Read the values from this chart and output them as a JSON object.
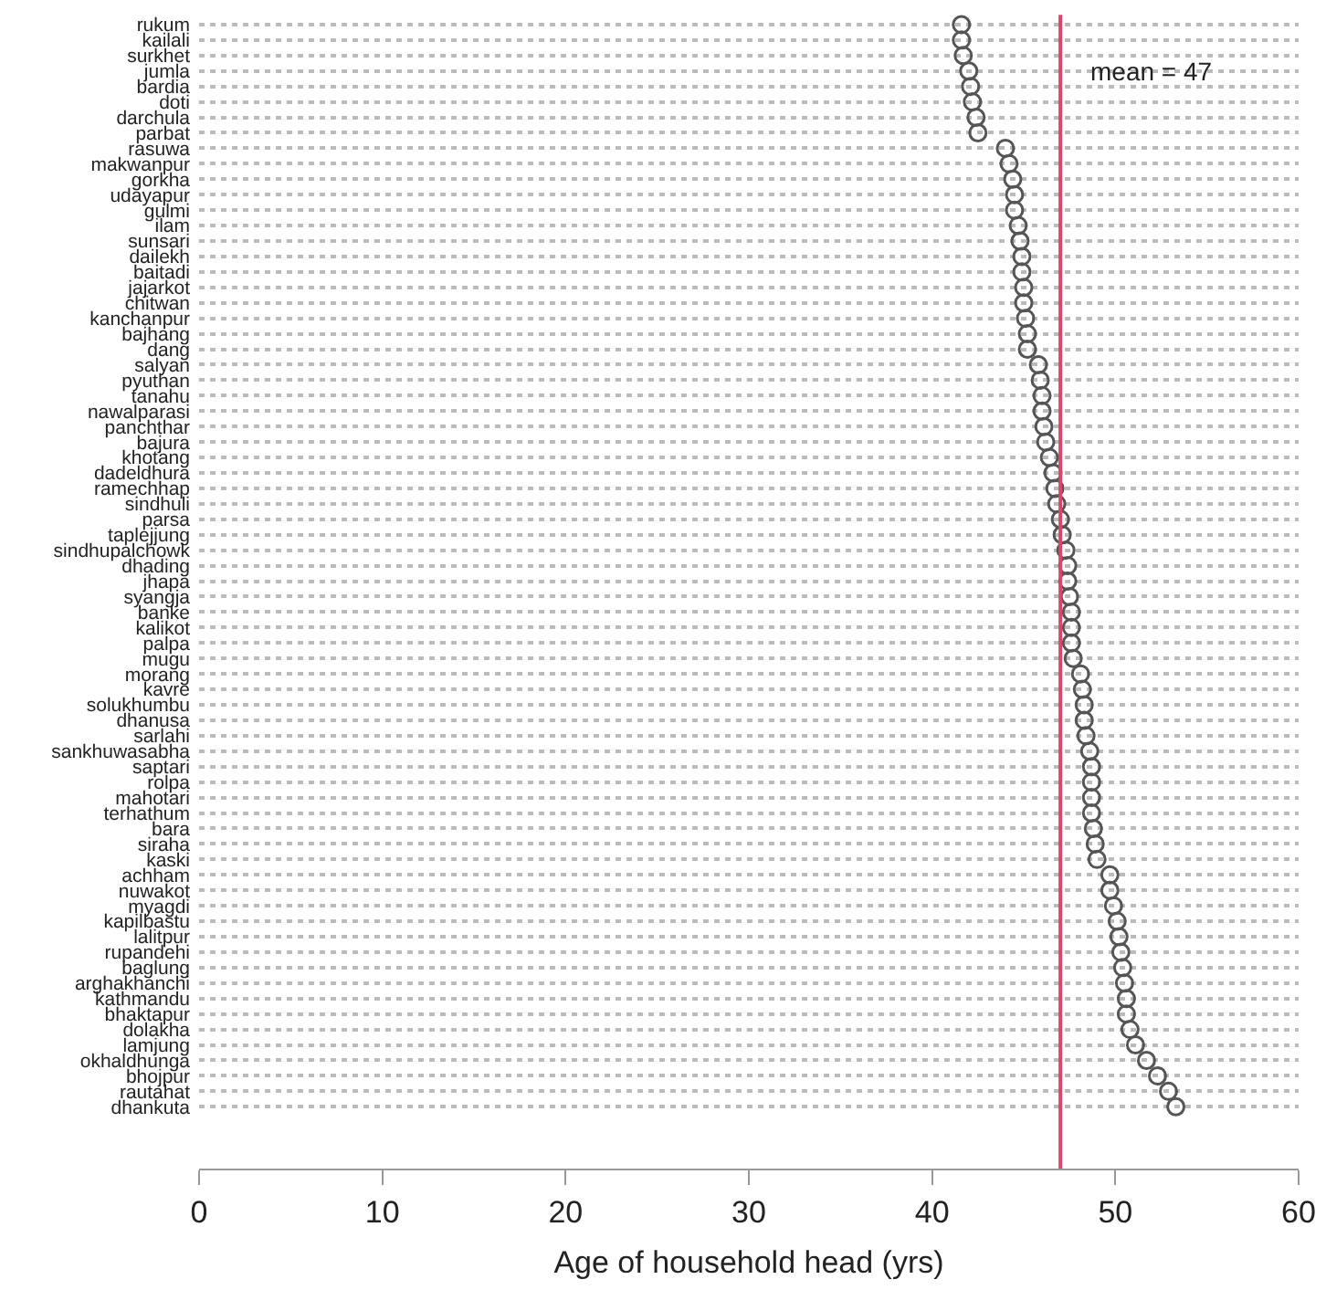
{
  "chart_data": {
    "type": "scatter",
    "orientation": "horizontal",
    "xlabel": "Age of household head (yrs)",
    "categories": [
      "rukum",
      "kailali",
      "surkhet",
      "jumla",
      "bardia",
      "doti",
      "darchula",
      "parbat",
      "rasuwa",
      "makwanpur",
      "gorkha",
      "udayapur",
      "gulmi",
      "ilam",
      "sunsari",
      "dailekh",
      "baitadi",
      "jajarkot",
      "chitwan",
      "kanchanpur",
      "bajhang",
      "dang",
      "salyan",
      "pyuthan",
      "tanahu",
      "nawalparasi",
      "panchthar",
      "bajura",
      "khotang",
      "dadeldhura",
      "ramechhap",
      "sindhuli",
      "parsa",
      "taplejjung",
      "sindhupalchowk",
      "dhading",
      "jhapa",
      "syangja",
      "banke",
      "kalikot",
      "palpa",
      "mugu",
      "morang",
      "kavre",
      "solukhumbu",
      "dhanusa",
      "sarlahi",
      "sankhuwasabha",
      "saptari",
      "rolpa",
      "mahotari",
      "terhathum",
      "bara",
      "siraha",
      "kaski",
      "achham",
      "nuwakot",
      "myagdi",
      "kapilbastu",
      "lalitpur",
      "rupandehi",
      "baglung",
      "arghakhanchi",
      "kathmandu",
      "bhaktapur",
      "dolakha",
      "lamjung",
      "okhaldhunga",
      "bhojpur",
      "rautahat",
      "dhankuta"
    ],
    "values": [
      41.6,
      41.6,
      41.7,
      42.0,
      42.1,
      42.2,
      42.4,
      42.5,
      44.0,
      44.2,
      44.4,
      44.5,
      44.5,
      44.7,
      44.8,
      44.9,
      44.9,
      45.0,
      45.0,
      45.1,
      45.2,
      45.2,
      45.8,
      45.9,
      46.0,
      46.0,
      46.1,
      46.2,
      46.4,
      46.6,
      46.7,
      46.8,
      47.0,
      47.1,
      47.3,
      47.4,
      47.4,
      47.5,
      47.6,
      47.6,
      47.6,
      47.7,
      48.1,
      48.2,
      48.3,
      48.3,
      48.4,
      48.6,
      48.7,
      48.7,
      48.7,
      48.7,
      48.8,
      48.9,
      49.0,
      49.7,
      49.7,
      49.9,
      50.1,
      50.2,
      50.3,
      50.4,
      50.5,
      50.6,
      50.6,
      50.8,
      51.1,
      51.7,
      52.3,
      52.9,
      53.3
    ],
    "color": "#555555",
    "marker": "circle",
    "grid": "y",
    "legend": false,
    "xlim": [
      0,
      60
    ],
    "xticks": [
      0,
      10,
      20,
      30,
      40,
      50,
      60
    ],
    "ref_lines": [
      {
        "axis": "x",
        "value": 47,
        "label": "mean = 47",
        "color": "#d9466b"
      }
    ]
  }
}
